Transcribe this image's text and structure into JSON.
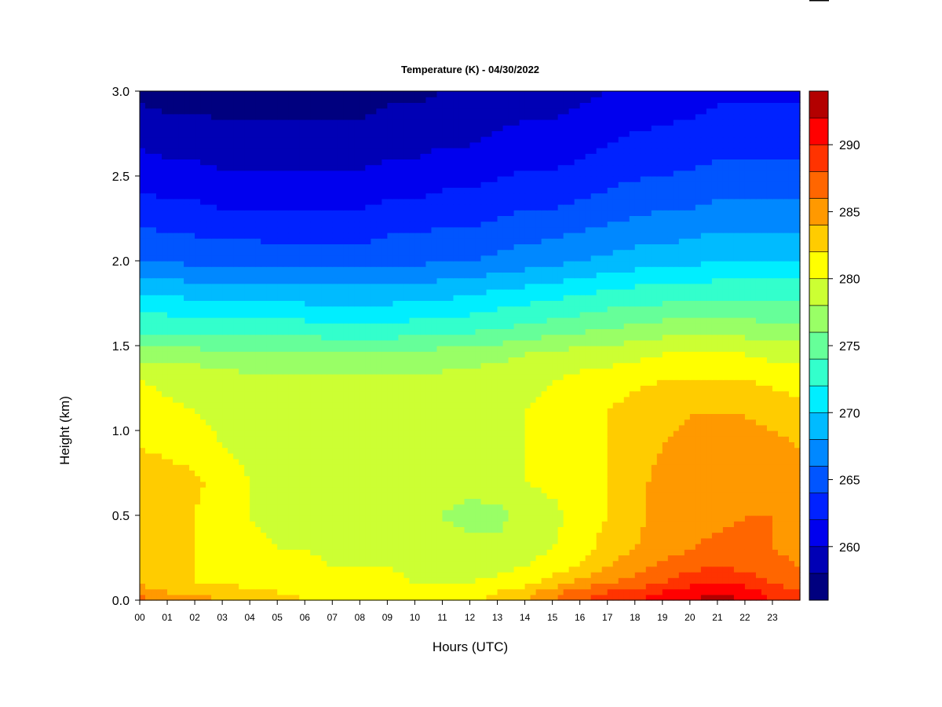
{
  "chart_data": {
    "type": "heatmap",
    "title": "Temperature (K) - 04/30/2022",
    "xlabel": "Hours (UTC)",
    "ylabel": "Height (km)",
    "x_ticks": [
      "00",
      "01",
      "02",
      "03",
      "04",
      "05",
      "06",
      "07",
      "08",
      "09",
      "10",
      "11",
      "12",
      "13",
      "14",
      "15",
      "16",
      "17",
      "18",
      "19",
      "20",
      "21",
      "22",
      "23"
    ],
    "y_ticks": [
      "0.0",
      "0.5",
      "1.0",
      "1.5",
      "2.0",
      "2.5",
      "3.0"
    ],
    "xlim": [
      0,
      24
    ],
    "ylim": [
      0,
      3.0
    ],
    "colorbar": {
      "levels": [
        256,
        258,
        260,
        262,
        264,
        266,
        268,
        270,
        272,
        274,
        276,
        278,
        280,
        282,
        284,
        286,
        288,
        290,
        292,
        294
      ],
      "colors": [
        "#00007f",
        "#0000b5",
        "#0000ee",
        "#0022ff",
        "#0055ff",
        "#0088ff",
        "#00bbff",
        "#00eeff",
        "#33ffcc",
        "#66ff99",
        "#99ff66",
        "#ccff33",
        "#ffff00",
        "#ffcc00",
        "#ff9900",
        "#ff6600",
        "#ff3300",
        "#ff0000",
        "#b30000"
      ],
      "tick_labels": [
        "260",
        "265",
        "270",
        "275",
        "280",
        "285",
        "290"
      ],
      "tick_values": [
        260,
        265,
        270,
        275,
        280,
        285,
        290
      ]
    },
    "heights_km": [
      0.0,
      0.05,
      0.1,
      0.2,
      0.3,
      0.5,
      0.7,
      0.9,
      1.1,
      1.3,
      1.45,
      1.6,
      1.8,
      2.0,
      2.3,
      2.6,
      3.0
    ],
    "hours": [
      0,
      1,
      2,
      3,
      4,
      5,
      6,
      7,
      8,
      9,
      10,
      11,
      12,
      13,
      14,
      15,
      16,
      17,
      18,
      19,
      20,
      21,
      22,
      23,
      24
    ],
    "temperature_k": [
      [
        287,
        286,
        285,
        284,
        283,
        283,
        282,
        282,
        281.5,
        281.5,
        281,
        281,
        281,
        283,
        284,
        286,
        288,
        289,
        290,
        291,
        292,
        293,
        292,
        290,
        289
      ],
      [
        284.5,
        284,
        283,
        283,
        282,
        282,
        281.5,
        281,
        281,
        281,
        280.5,
        280.5,
        280.5,
        282,
        283,
        285,
        287,
        288,
        289,
        290,
        291,
        291.5,
        291,
        289,
        288
      ],
      [
        284,
        283,
        282,
        282,
        281.5,
        281,
        281,
        280.5,
        280.5,
        280.5,
        280,
        280,
        280,
        280.5,
        281.5,
        283,
        285,
        286,
        287,
        288,
        289.5,
        290,
        289.5,
        288,
        287
      ],
      [
        283.5,
        283,
        282,
        281.5,
        281,
        280.5,
        280.5,
        280,
        280,
        280,
        279.5,
        279.5,
        279.5,
        279.5,
        280,
        281,
        282,
        284,
        285,
        286.5,
        287.5,
        288,
        287.5,
        286.5,
        286
      ],
      [
        283.5,
        283,
        282,
        281,
        280.5,
        280,
        280,
        279.5,
        279.5,
        279.5,
        279,
        278.5,
        278.5,
        278.5,
        279,
        280,
        281,
        283,
        284,
        285,
        286,
        286.5,
        286.5,
        286,
        285.5
      ],
      [
        283.5,
        283,
        282,
        280.5,
        280,
        279.5,
        279.5,
        279.5,
        279.5,
        279.5,
        279,
        278,
        277.5,
        277.5,
        278.5,
        279.5,
        280.5,
        282,
        283.5,
        284.5,
        285,
        285.5,
        286,
        286,
        285.5
      ],
      [
        283.5,
        283,
        282.5,
        281,
        280,
        279.5,
        279.5,
        279.5,
        279.5,
        279.5,
        279,
        278.5,
        278.5,
        279,
        280,
        280.5,
        281,
        282,
        283.5,
        284.5,
        284.5,
        285,
        285.5,
        285.5,
        285
      ],
      [
        282,
        281.5,
        281,
        280,
        279.5,
        279.5,
        279.5,
        279.5,
        279.5,
        279.5,
        279,
        279,
        279,
        279.5,
        280,
        280.5,
        281,
        282,
        283.5,
        284,
        284.5,
        284.5,
        284.5,
        284.5,
        284
      ],
      [
        281,
        280.5,
        280,
        279.5,
        279.5,
        279,
        279,
        279,
        279,
        279,
        279,
        279,
        279,
        279.5,
        280,
        280.5,
        281,
        282,
        283,
        283.5,
        284,
        284,
        284,
        283.5,
        283
      ],
      [
        280,
        279.5,
        279.5,
        279,
        278.5,
        278.5,
        278.5,
        278.5,
        278.5,
        278.5,
        278.5,
        278.5,
        279,
        279,
        279.5,
        280,
        280.5,
        281,
        281.5,
        282,
        282,
        282,
        282,
        281.5,
        281
      ],
      [
        277,
        277,
        277,
        276.5,
        276.5,
        276.5,
        276.5,
        276.5,
        276.5,
        276.5,
        276.5,
        277,
        277,
        277.5,
        278,
        278.5,
        279,
        279,
        279.5,
        280,
        280,
        280,
        280,
        279.5,
        279.5
      ],
      [
        273.5,
        273.5,
        273,
        273,
        273,
        273,
        273,
        272.5,
        272.5,
        272.5,
        273,
        273,
        273.5,
        274,
        274.5,
        275,
        275.5,
        276,
        276.5,
        277,
        277,
        277,
        277,
        276.5,
        276.5
      ],
      [
        270,
        270,
        269.5,
        269.5,
        269.5,
        269.5,
        269,
        269,
        269,
        269,
        269.5,
        269.5,
        270,
        270.5,
        271,
        271.5,
        272,
        272.5,
        273,
        273,
        273.5,
        273.5,
        273.5,
        273.5,
        273.5
      ],
      [
        266,
        266,
        265.5,
        265.5,
        265.5,
        265,
        265,
        265,
        265,
        265.5,
        265.5,
        266,
        266,
        266.5,
        267,
        267.5,
        268,
        268.5,
        269,
        269,
        269.5,
        270,
        270,
        270,
        270
      ],
      [
        263,
        262.5,
        262.5,
        262,
        262,
        262,
        262,
        262,
        262,
        262.5,
        262.5,
        263,
        263,
        263.5,
        264,
        264,
        264.5,
        265,
        265.5,
        266,
        266,
        266.5,
        266.5,
        266.5,
        266.5
      ],
      [
        260.5,
        260,
        260,
        259.5,
        259.5,
        259.5,
        259.5,
        259.5,
        259.5,
        260,
        260,
        260.5,
        260.5,
        261,
        261.5,
        261.5,
        262,
        262.5,
        263,
        263,
        263.5,
        264,
        264,
        264,
        264
      ],
      [
        257.5,
        257,
        257,
        257,
        257,
        257,
        257,
        257,
        257,
        257.5,
        257.5,
        258,
        258,
        258.5,
        259,
        259,
        259.5,
        260,
        260.5,
        261,
        261,
        261.5,
        261.5,
        261.5,
        261.5
      ]
    ]
  }
}
